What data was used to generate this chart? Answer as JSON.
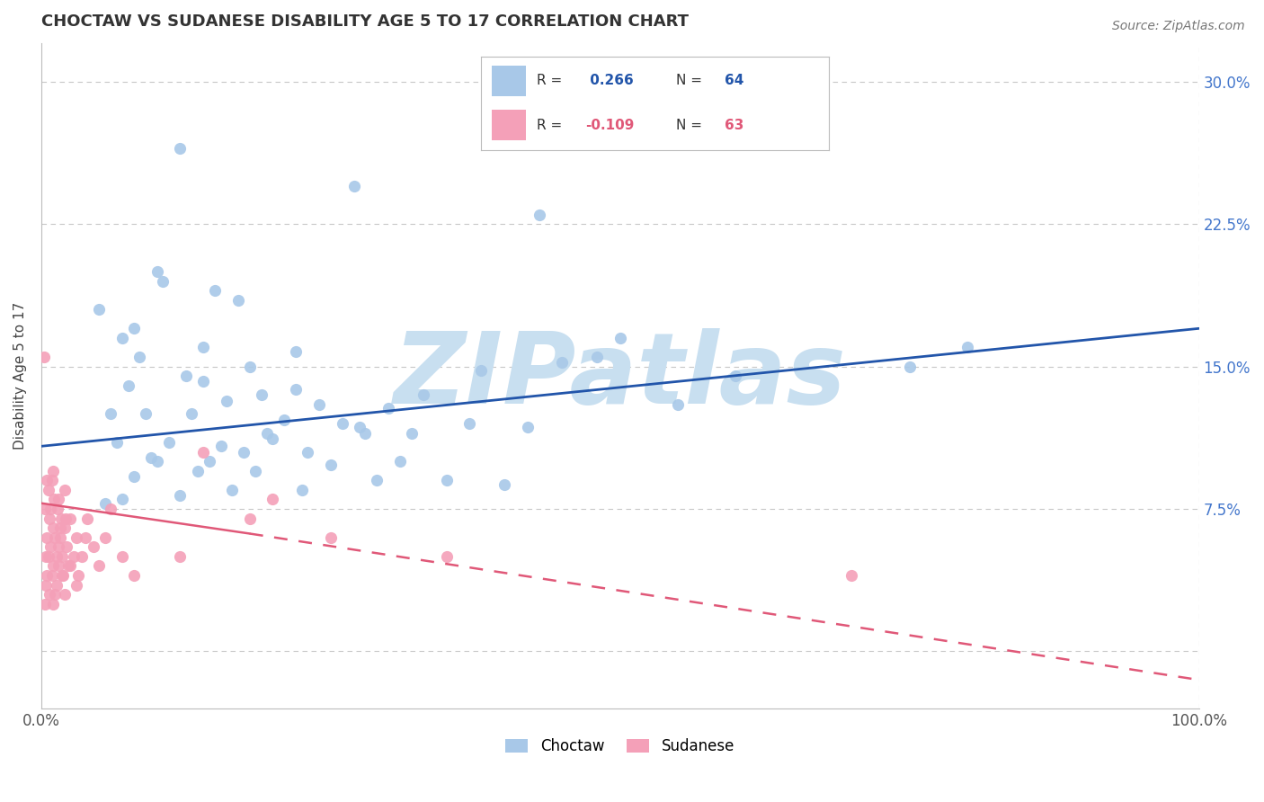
{
  "title": "CHOCTAW VS SUDANESE DISABILITY AGE 5 TO 17 CORRELATION CHART",
  "source_text": "Source: ZipAtlas.com",
  "ylabel": "Disability Age 5 to 17",
  "xlim": [
    0,
    100
  ],
  "ylim": [
    -3,
    32
  ],
  "yticks": [
    0,
    7.5,
    15.0,
    22.5,
    30.0
  ],
  "choctaw_R": 0.266,
  "choctaw_N": 64,
  "sudanese_R": -0.109,
  "sudanese_N": 63,
  "choctaw_color": "#a8c8e8",
  "sudanese_color": "#f4a0b8",
  "choctaw_line_color": "#2255aa",
  "sudanese_line_color": "#e05878",
  "background_color": "#ffffff",
  "grid_color": "#c8c8c8",
  "watermark": "ZIPatlas",
  "watermark_color": "#c8dff0",
  "blue_line_x0": 0,
  "blue_line_y0": 10.8,
  "blue_line_x1": 100,
  "blue_line_y1": 17.0,
  "pink_solid_x0": 0,
  "pink_solid_y0": 7.8,
  "pink_solid_x1": 18,
  "pink_solid_y1": 6.2,
  "pink_dash_x0": 18,
  "pink_dash_y0": 6.2,
  "pink_dash_x1": 100,
  "pink_dash_y1": -1.5,
  "choctaw_x": [
    12.0,
    27.0,
    10.0,
    10.5,
    15.0,
    17.0,
    5.0,
    8.0,
    7.0,
    14.0,
    8.5,
    18.0,
    12.5,
    7.5,
    22.0,
    19.0,
    16.0,
    24.0,
    30.0,
    13.0,
    9.0,
    21.0,
    37.0,
    26.0,
    42.0,
    32.0,
    28.0,
    20.0,
    11.0,
    6.5,
    15.5,
    23.0,
    17.5,
    9.5,
    14.5,
    31.0,
    25.0,
    18.5,
    13.5,
    8.0,
    35.0,
    29.0,
    40.0,
    22.5,
    16.5,
    12.0,
    7.0,
    5.5,
    19.5,
    27.5,
    33.0,
    45.0,
    38.0,
    50.0,
    10.0,
    14.0,
    22.0,
    6.0,
    60.0,
    75.0,
    80.0,
    55.0,
    48.0,
    43.0
  ],
  "choctaw_y": [
    26.5,
    24.5,
    20.0,
    19.5,
    19.0,
    18.5,
    18.0,
    17.0,
    16.5,
    16.0,
    15.5,
    15.0,
    14.5,
    14.0,
    13.8,
    13.5,
    13.2,
    13.0,
    12.8,
    12.5,
    12.5,
    12.2,
    12.0,
    12.0,
    11.8,
    11.5,
    11.5,
    11.2,
    11.0,
    11.0,
    10.8,
    10.5,
    10.5,
    10.2,
    10.0,
    10.0,
    9.8,
    9.5,
    9.5,
    9.2,
    9.0,
    9.0,
    8.8,
    8.5,
    8.5,
    8.2,
    8.0,
    7.8,
    11.5,
    11.8,
    13.5,
    15.2,
    14.8,
    16.5,
    10.0,
    14.2,
    15.8,
    12.5,
    14.5,
    15.0,
    16.0,
    13.0,
    15.5,
    23.0
  ],
  "sudanese_x": [
    0.2,
    0.3,
    0.4,
    0.5,
    0.5,
    0.6,
    0.7,
    0.8,
    0.9,
    1.0,
    1.0,
    1.1,
    1.2,
    1.3,
    1.4,
    1.5,
    1.5,
    1.6,
    1.7,
    1.8,
    1.9,
    2.0,
    2.0,
    2.1,
    2.2,
    2.3,
    2.5,
    2.8,
    3.0,
    3.2,
    3.5,
    3.8,
    4.0,
    4.5,
    5.0,
    5.5,
    6.0,
    7.0,
    8.0,
    0.4,
    0.6,
    0.8,
    1.0,
    1.2,
    1.5,
    1.8,
    2.0,
    2.5,
    3.0,
    0.3,
    0.5,
    0.7,
    1.0,
    1.3,
    12.0,
    18.0,
    25.0,
    35.0,
    20.0,
    14.0,
    70.0,
    0.9,
    1.6
  ],
  "sudanese_y": [
    15.5,
    7.5,
    5.0,
    6.0,
    9.0,
    8.5,
    7.0,
    5.5,
    4.0,
    6.5,
    9.5,
    8.0,
    6.0,
    5.0,
    7.5,
    4.5,
    8.0,
    6.0,
    7.0,
    5.0,
    4.0,
    6.5,
    8.5,
    7.0,
    5.5,
    4.5,
    7.0,
    5.0,
    6.0,
    4.0,
    5.0,
    6.0,
    7.0,
    5.5,
    4.5,
    6.0,
    7.5,
    5.0,
    4.0,
    3.5,
    5.0,
    7.5,
    4.5,
    3.0,
    5.5,
    4.0,
    3.0,
    4.5,
    3.5,
    2.5,
    4.0,
    3.0,
    2.5,
    3.5,
    5.0,
    7.0,
    6.0,
    5.0,
    8.0,
    10.5,
    4.0,
    9.0,
    6.5
  ]
}
